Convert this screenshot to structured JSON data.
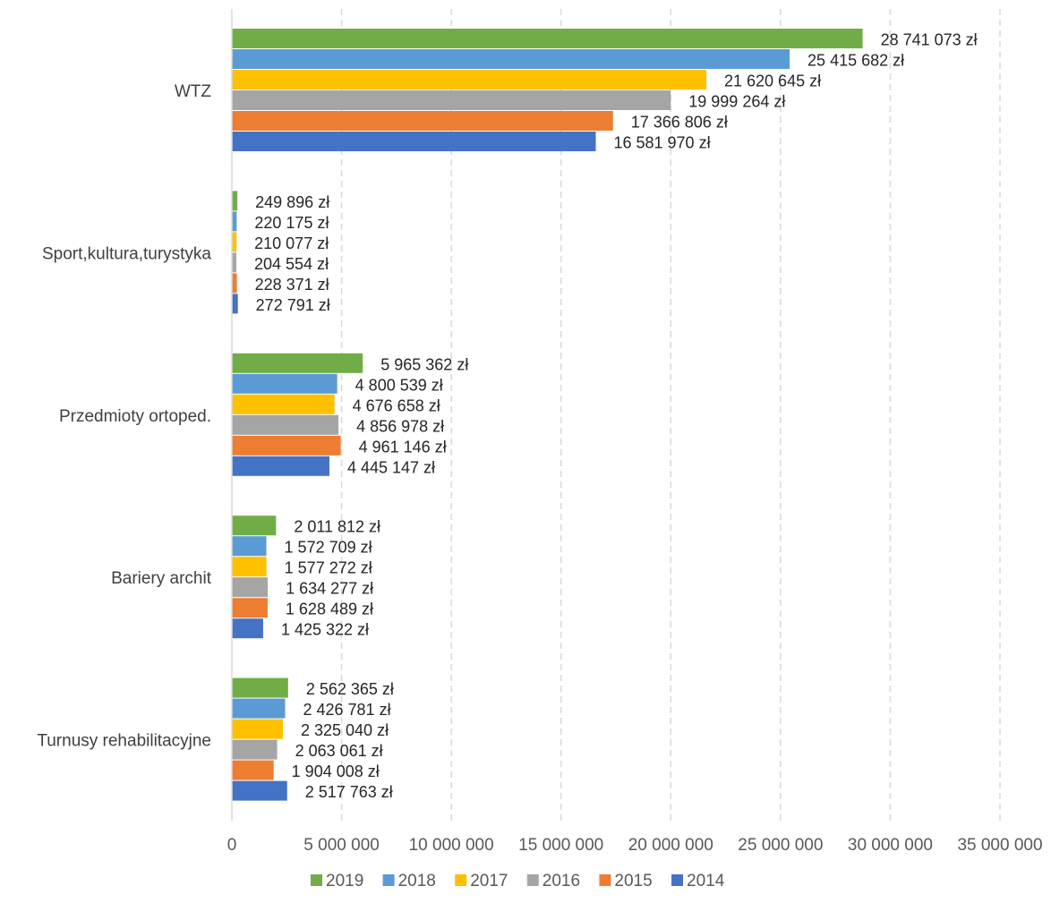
{
  "chart_data": {
    "type": "bar",
    "orientation": "horizontal",
    "categories": [
      "WTZ",
      "Sport,kultura,turystyka",
      "Przedmioty ortoped.",
      "Bariery archit",
      "Turnusy rehabilitacyjne"
    ],
    "series": [
      {
        "name": "2019",
        "color": "#70AD47",
        "values": [
          28741073,
          249896,
          5965362,
          2011812,
          2562365
        ],
        "labels": [
          "28 741 073 zł",
          "249 896 zł",
          "5 965 362 zł",
          "2 011 812 zł",
          "2 562 365 zł"
        ]
      },
      {
        "name": "2018",
        "color": "#5B9BD5",
        "values": [
          25415682,
          220175,
          4800539,
          1572709,
          2426781
        ],
        "labels": [
          "25 415 682 zł",
          "220 175 zł",
          "4 800 539 zł",
          "1 572 709 zł",
          "2 426 781 zł"
        ]
      },
      {
        "name": "2017",
        "color": "#FFC000",
        "values": [
          21620645,
          210077,
          4676658,
          1577272,
          2325040
        ],
        "labels": [
          "21 620 645 zł",
          "210 077 zł",
          "4 676 658 zł",
          "1 577 272 zł",
          "2 325 040 zł"
        ]
      },
      {
        "name": "2016",
        "color": "#A5A5A5",
        "values": [
          19999264,
          204554,
          4856978,
          1634277,
          2063061
        ],
        "labels": [
          "19 999 264 zł",
          "204 554 zł",
          "4 856 978 zł",
          "1 634 277 zł",
          "2 063 061 zł"
        ]
      },
      {
        "name": "2015",
        "color": "#ED7D31",
        "values": [
          17366806,
          228371,
          4961146,
          1628489,
          1904008
        ],
        "labels": [
          "17 366 806 zł",
          "228 371 zł",
          "4 961 146 zł",
          "1 628 489 zł",
          "1 904 008 zł"
        ]
      },
      {
        "name": "2014",
        "color": "#4472C4",
        "values": [
          16581970,
          272791,
          4445147,
          1425322,
          2517763
        ],
        "labels": [
          "16 581 970 zł",
          "272 791 zł",
          "4 445 147 zł",
          "1 425 322 zł",
          "2 517 763 zł"
        ]
      }
    ],
    "xlim": [
      0,
      35000000
    ],
    "xticks": [
      0,
      5000000,
      10000000,
      15000000,
      20000000,
      25000000,
      30000000,
      35000000
    ],
    "xtick_labels": [
      "0",
      "5 000 000",
      "10 000 000",
      "15 000 000",
      "20 000 000",
      "25 000 000",
      "30 000 000",
      "35 000 000"
    ],
    "grid": "vertical dashed",
    "legend_position": "bottom",
    "title": "",
    "xlabel": "",
    "ylabel": ""
  }
}
